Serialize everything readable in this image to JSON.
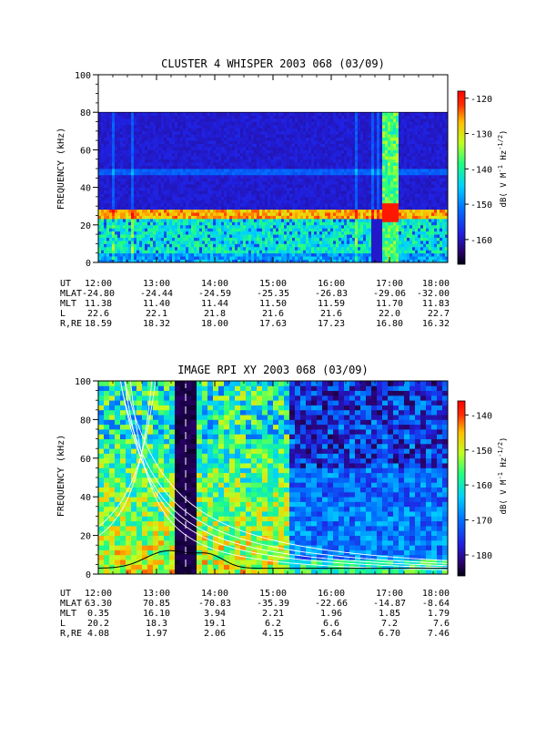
{
  "chart_data": [
    {
      "type": "heatmap",
      "title": "CLUSTER 4 WHISPER 2003 068 (03/09)",
      "ylabel": "FREQUENCY (kHz)",
      "ylim": [
        0,
        100
      ],
      "y_ticks": [
        "0",
        "20",
        "40",
        "60",
        "80",
        "100"
      ],
      "data_ylim": [
        0,
        80
      ],
      "x_ticks": [
        "12:00",
        "13:00",
        "14:00",
        "15:00",
        "16:00",
        "17:00",
        "18:00"
      ],
      "colorbar": {
        "label": "dB( V M^-1 Hz^-1/2)",
        "ticks": [
          "-120",
          "-130",
          "-140",
          "-150",
          "-160"
        ],
        "range": [
          -167,
          -118
        ]
      },
      "features": {
        "main_band_khz": 25,
        "secondary_band_khz": 48,
        "burst_time": "17:00"
      },
      "ephemeris": {
        "rows": [
          {
            "label": "UT",
            "values": [
              "12:00",
              "13:00",
              "14:00",
              "15:00",
              "16:00",
              "17:00",
              "18:00"
            ]
          },
          {
            "label": "MLAT",
            "values": [
              "-24.80",
              "-24.44",
              "-24.59",
              "-25.35",
              "-26.83",
              "-29.06",
              "-32.00"
            ]
          },
          {
            "label": "MLT",
            "values": [
              "11.38",
              "11.40",
              "11.44",
              "11.50",
              "11.59",
              "11.70",
              "11.83"
            ]
          },
          {
            "label": "L",
            "values": [
              "22.6",
              "22.1",
              "21.8",
              "21.6",
              "21.6",
              "22.0",
              "22.7"
            ]
          },
          {
            "label": "R,RE",
            "values": [
              "18.59",
              "18.32",
              "18.00",
              "17.63",
              "17.23",
              "16.80",
              "16.32"
            ]
          }
        ]
      }
    },
    {
      "type": "heatmap",
      "title": "IMAGE RPI XY 2003 068 (03/09)",
      "ylabel": "FREQUENCY (kHz)",
      "ylim": [
        0,
        100
      ],
      "y_ticks": [
        "0",
        "20",
        "40",
        "60",
        "80",
        "100"
      ],
      "x_ticks": [
        "12:00",
        "13:00",
        "14:00",
        "15:00",
        "16:00",
        "17:00",
        "18:00"
      ],
      "colorbar": {
        "label": "dB( V M^-1 Hz^-1/2)",
        "ticks": [
          "-140",
          "-150",
          "-160",
          "-170",
          "-180"
        ],
        "range": [
          -186,
          -136
        ]
      },
      "features": {
        "dark_gap_time": "13:30"
      },
      "ephemeris": {
        "rows": [
          {
            "label": "UT",
            "values": [
              "12:00",
              "13:00",
              "14:00",
              "15:00",
              "16:00",
              "17:00",
              "18:00"
            ]
          },
          {
            "label": "MLAT",
            "values": [
              "63.30",
              "70.85",
              "-70.83",
              "-35.39",
              "-22.66",
              "-14.87",
              "-8.64"
            ]
          },
          {
            "label": "MLT",
            "values": [
              "0.35",
              "16.10",
              "3.94",
              "2.21",
              "1.96",
              "1.85",
              "1.79"
            ]
          },
          {
            "label": "L",
            "values": [
              "20.2",
              "18.3",
              "19.1",
              "6.2",
              "6.6",
              "7.2",
              "7.6"
            ]
          },
          {
            "label": "R,RE",
            "values": [
              "4.08",
              "1.97",
              "2.06",
              "4.15",
              "5.64",
              "6.70",
              "7.46"
            ]
          }
        ]
      }
    }
  ]
}
